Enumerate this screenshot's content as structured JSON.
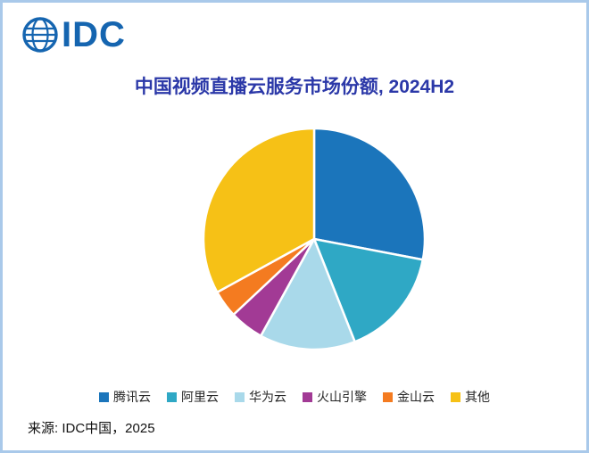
{
  "page": {
    "background": "#ffffff",
    "border_color": "#a9c9ea"
  },
  "logo": {
    "text": "IDC",
    "color": "#1565b0"
  },
  "title": {
    "text": "中国视频直播云服务市场份额, 2024H2",
    "color": "#2b38a8"
  },
  "chart_data": {
    "type": "pie",
    "title": "中国视频直播云服务市场份额, 2024H2",
    "start_angle_deg": 0,
    "direction": "clockwise",
    "legend_position": "bottom",
    "data_labels_shown": false,
    "slices": [
      {
        "label": "腾讯云",
        "value": 28,
        "color": "#1b75bb"
      },
      {
        "label": "阿里云",
        "value": 16,
        "color": "#2fa8c5"
      },
      {
        "label": "华为云",
        "value": 14,
        "color": "#a9d9ea"
      },
      {
        "label": "火山引擎",
        "value": 5,
        "color": "#a23a95"
      },
      {
        "label": "金山云",
        "value": 4,
        "color": "#f47b20"
      },
      {
        "label": "其他",
        "value": 33,
        "color": "#f6c116"
      }
    ]
  },
  "source": {
    "text": "来源: IDC中国，2025"
  }
}
